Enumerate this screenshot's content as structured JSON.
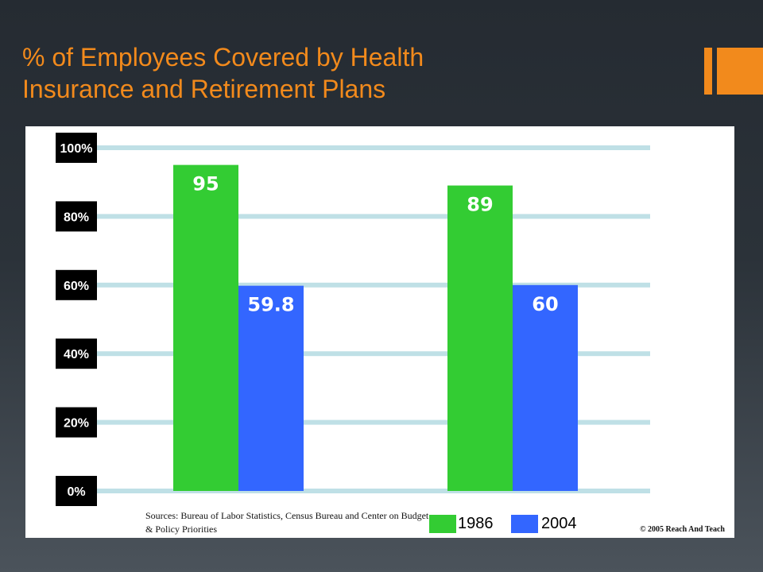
{
  "slide": {
    "title_lines": [
      "% of Employees Covered by Health",
      "Insurance and Retirement Plans"
    ],
    "accent_color": "#f28a1c"
  },
  "chart_data": {
    "type": "bar",
    "categories": [
      "",
      ""
    ],
    "series": [
      {
        "name": "1986",
        "values": [
          95,
          89
        ],
        "color": "#33cc33"
      },
      {
        "name": "2004",
        "values": [
          59.8,
          60
        ],
        "color": "#3366ff"
      }
    ],
    "value_labels": [
      [
        "95",
        "89"
      ],
      [
        "59.8",
        "60"
      ]
    ],
    "y_ticks": [
      "0%",
      "20%",
      "40%",
      "60%",
      "80%",
      "100%"
    ],
    "ylim": [
      0,
      100
    ],
    "grid": true,
    "legend_position": "bottom",
    "title": "",
    "xlabel": "",
    "ylabel": ""
  },
  "footer": {
    "sources": "Sources: Bureau of Labor Statistics, Census Bureau and Center on Budget & Policy Priorities",
    "copyright": "© 2005 Reach And Teach"
  }
}
